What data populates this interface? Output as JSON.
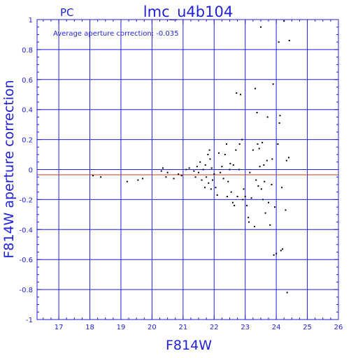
{
  "chart_data": {
    "type": "scatter",
    "title": "lmc_u4b104",
    "corner_label": "PC",
    "annotation": "Average aperture correction: -0.035",
    "xlabel": "F814W",
    "ylabel": "F814W aperture correction",
    "xlim": [
      16.3,
      26
    ],
    "ylim": [
      -1,
      1
    ],
    "x_ticks": [
      "17",
      "18",
      "19",
      "20",
      "21",
      "22",
      "23",
      "24",
      "25",
      "26"
    ],
    "y_ticks": [
      "1",
      "0.8",
      "0.6",
      "0.4",
      "0.2",
      "0",
      "-0.2",
      "-0.4",
      "-0.6",
      "-0.8",
      "-1"
    ],
    "grid": true,
    "average_line": -0.035,
    "zero_line": 0,
    "colors": {
      "axis": "#1f1fdc",
      "grid": "#1f1fdc",
      "points": "#000000",
      "average_line": "#c83c1e"
    },
    "points": [
      [
        18.1,
        -0.04
      ],
      [
        18.35,
        -0.05
      ],
      [
        19.2,
        -0.08
      ],
      [
        19.55,
        -0.07
      ],
      [
        19.7,
        -0.06
      ],
      [
        20.3,
        -0.01
      ],
      [
        20.35,
        0.01
      ],
      [
        20.45,
        -0.05
      ],
      [
        20.5,
        -0.02
      ],
      [
        20.7,
        -0.06
      ],
      [
        20.85,
        -0.03
      ],
      [
        20.95,
        -0.04
      ],
      [
        21.1,
        0.0
      ],
      [
        21.2,
        0.01
      ],
      [
        21.35,
        -0.01
      ],
      [
        21.4,
        -0.05
      ],
      [
        21.45,
        0.02
      ],
      [
        21.5,
        -0.02
      ],
      [
        21.55,
        0.05
      ],
      [
        21.6,
        -0.07
      ],
      [
        21.65,
        0.0
      ],
      [
        21.7,
        -0.12
      ],
      [
        21.72,
        0.03
      ],
      [
        21.75,
        -0.05
      ],
      [
        21.8,
        0.1
      ],
      [
        21.82,
        -0.09
      ],
      [
        21.85,
        0.13
      ],
      [
        21.87,
        0.07
      ],
      [
        21.9,
        -0.13
      ],
      [
        21.92,
        0.01
      ],
      [
        21.95,
        -0.07
      ],
      [
        22.0,
        -0.03
      ],
      [
        22.05,
        -0.12
      ],
      [
        22.1,
        -0.17
      ],
      [
        22.15,
        0.11
      ],
      [
        22.2,
        -0.02
      ],
      [
        22.25,
        0.02
      ],
      [
        22.3,
        -0.06
      ],
      [
        22.35,
        0.1
      ],
      [
        22.4,
        0.17
      ],
      [
        22.42,
        -0.18
      ],
      [
        22.45,
        -0.08
      ],
      [
        22.5,
        0.0
      ],
      [
        22.52,
        0.04
      ],
      [
        22.55,
        -0.15
      ],
      [
        22.6,
        -0.22
      ],
      [
        22.62,
        0.03
      ],
      [
        22.65,
        -0.24
      ],
      [
        22.7,
        0.13
      ],
      [
        22.72,
        0.51
      ],
      [
        22.75,
        -0.18
      ],
      [
        22.8,
        0.0
      ],
      [
        22.82,
        0.17
      ],
      [
        22.85,
        0.5
      ],
      [
        22.9,
        0.2
      ],
      [
        22.92,
        -0.2
      ],
      [
        22.95,
        -0.13
      ],
      [
        23.0,
        -0.18
      ],
      [
        23.05,
        -0.24
      ],
      [
        23.1,
        -0.32
      ],
      [
        23.12,
        -0.35
      ],
      [
        23.15,
        -0.02
      ],
      [
        23.2,
        -0.19
      ],
      [
        23.25,
        0.13
      ],
      [
        23.3,
        -0.38
      ],
      [
        23.32,
        0.54
      ],
      [
        23.35,
        -0.07
      ],
      [
        23.38,
        0.38
      ],
      [
        23.4,
        0.17
      ],
      [
        23.42,
        -0.11
      ],
      [
        23.45,
        0.14
      ],
      [
        23.47,
        0.02
      ],
      [
        23.5,
        0.95
      ],
      [
        23.52,
        -0.13
      ],
      [
        23.55,
        0.18
      ],
      [
        23.57,
        -0.2
      ],
      [
        23.6,
        0.03
      ],
      [
        23.62,
        -0.08
      ],
      [
        23.65,
        -0.29
      ],
      [
        23.7,
        0.06
      ],
      [
        23.72,
        0.35
      ],
      [
        23.75,
        -0.22
      ],
      [
        23.8,
        -0.37
      ],
      [
        23.85,
        -0.1
      ],
      [
        23.87,
        0.07
      ],
      [
        23.9,
        0.57
      ],
      [
        23.92,
        -0.57
      ],
      [
        23.95,
        -0.25
      ],
      [
        24.0,
        -0.56
      ],
      [
        24.05,
        0.17
      ],
      [
        24.08,
        0.85
      ],
      [
        24.1,
        0.31
      ],
      [
        24.12,
        0.36
      ],
      [
        24.15,
        -0.54
      ],
      [
        24.18,
        -0.12
      ],
      [
        24.2,
        -0.53
      ],
      [
        24.25,
        0.99
      ],
      [
        24.3,
        -0.27
      ],
      [
        24.33,
        0.06
      ],
      [
        24.35,
        -0.82
      ],
      [
        24.4,
        0.08
      ],
      [
        24.42,
        0.86
      ]
    ]
  }
}
